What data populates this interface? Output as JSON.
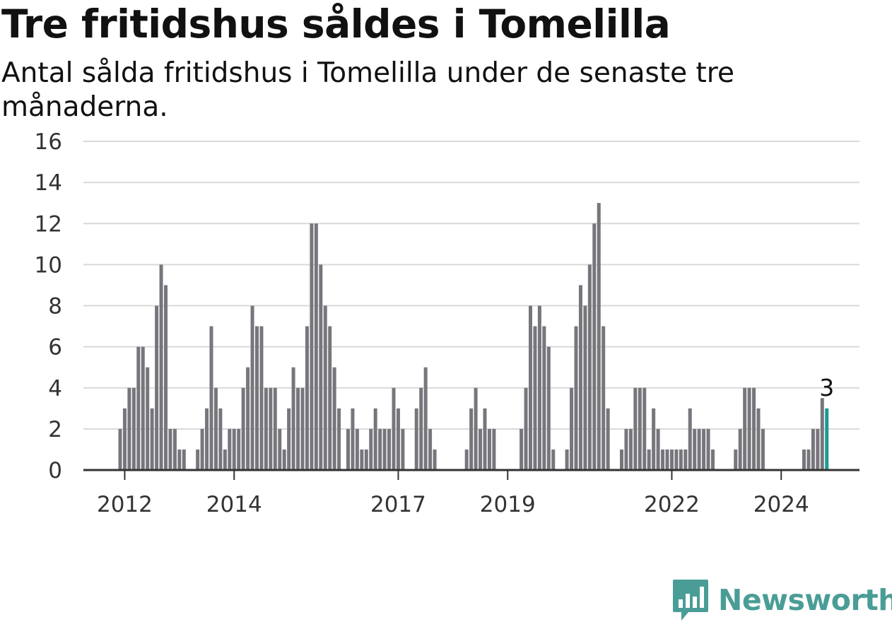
{
  "header": {
    "title": "Tre fritidshus såldes i Tomelilla",
    "subtitle": "Antal sålda fritidshus i Tomelilla under de senaste tre månaderna."
  },
  "brand": {
    "name": "Newsworthy",
    "color": "#4a9d96",
    "icon": "bar-chart-speech-bubble-icon"
  },
  "colors": {
    "bar": "#76767c",
    "highlight": "#1a9a92",
    "grid": "#d9d9d9",
    "axis": "#333333"
  },
  "chart_data": {
    "type": "bar",
    "title": "Tre fritidshus såldes i Tomelilla",
    "subtitle": "Antal sålda fritidshus i Tomelilla under de senaste tre månaderna.",
    "xlabel": "",
    "ylabel": "",
    "ylim": [
      0,
      16
    ],
    "yticks": [
      0,
      2,
      4,
      6,
      8,
      10,
      12,
      14,
      16
    ],
    "grid": true,
    "x_start": "2011-12",
    "xticks": [
      "2012",
      "2014",
      "2017",
      "2019",
      "2022",
      "2024"
    ],
    "values": [
      2,
      3,
      4,
      4,
      6,
      6,
      5,
      3,
      8,
      10,
      9,
      2,
      2,
      1,
      1,
      0,
      0,
      1,
      2,
      3,
      7,
      4,
      3,
      1,
      2,
      2,
      2,
      4,
      5,
      8,
      7,
      7,
      4,
      4,
      4,
      2,
      1,
      3,
      5,
      4,
      4,
      7,
      12,
      12,
      10,
      8,
      7,
      5,
      3,
      0,
      2,
      3,
      2,
      1,
      1,
      2,
      3,
      2,
      2,
      2,
      4,
      3,
      2,
      0,
      0,
      3,
      4,
      5,
      2,
      1,
      0,
      0,
      0,
      0,
      0,
      0,
      1,
      3,
      4,
      2,
      3,
      2,
      2,
      0,
      0,
      0,
      0,
      0,
      2,
      4,
      8,
      7,
      8,
      7,
      6,
      1,
      0,
      0,
      1,
      4,
      7,
      9,
      8,
      10,
      12,
      13,
      7,
      3,
      0,
      0,
      1,
      2,
      2,
      4,
      4,
      4,
      1,
      3,
      2,
      1,
      1,
      1,
      1,
      1,
      1,
      3,
      2,
      2,
      2,
      2,
      1,
      0,
      0,
      0,
      0,
      1,
      2,
      4,
      4,
      4,
      3,
      2,
      0,
      0,
      0,
      0,
      0,
      0,
      0,
      0,
      1,
      1,
      2,
      2,
      3.5,
      3
    ],
    "highlight_label": "3"
  }
}
